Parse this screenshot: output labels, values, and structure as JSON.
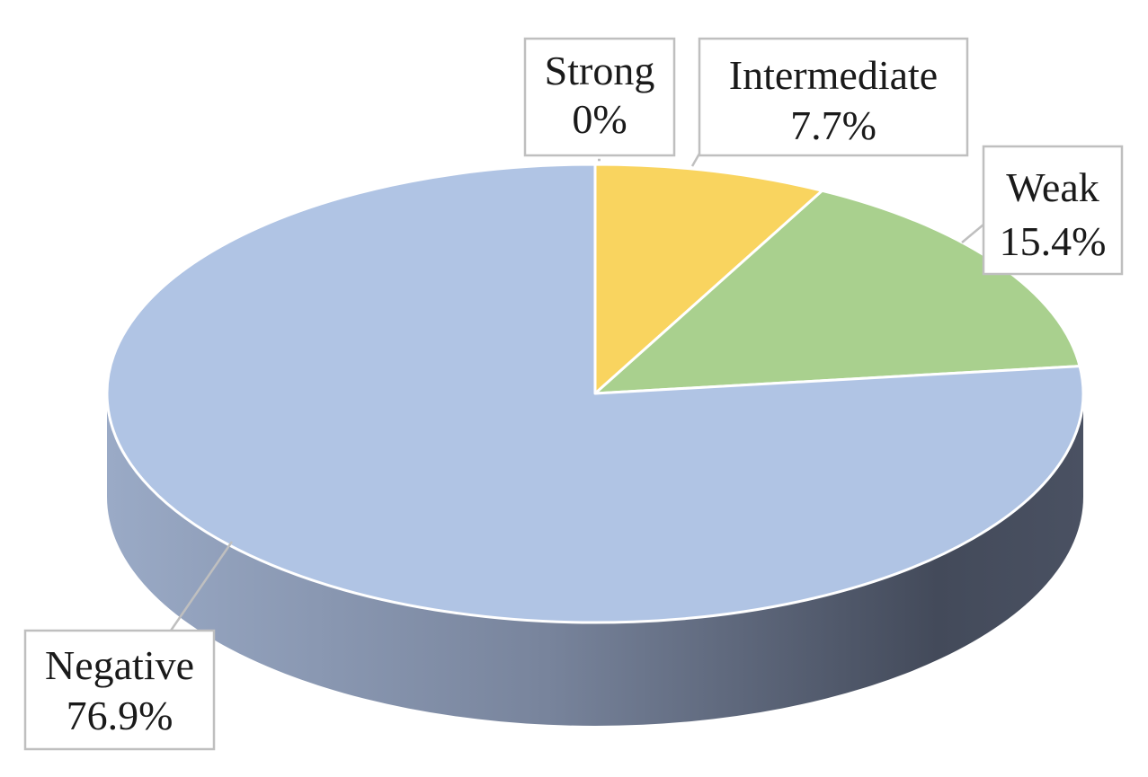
{
  "chart_data": {
    "type": "pie",
    "style": "3d",
    "title": "",
    "categories": [
      "Strong",
      "Intermediate",
      "Weak",
      "Negative"
    ],
    "values": [
      0,
      7.7,
      15.4,
      76.9
    ],
    "value_labels": [
      "0%",
      "7.7%",
      "15.4%",
      "76.9%"
    ],
    "colors": [
      "#f7d25c",
      "#f9d45f",
      "#a9d08e",
      "#b0c4e4"
    ],
    "side_color_light": "#9aaac6",
    "side_color_dark": "#434a5a",
    "legend": "none",
    "data_labels": "callouts"
  }
}
